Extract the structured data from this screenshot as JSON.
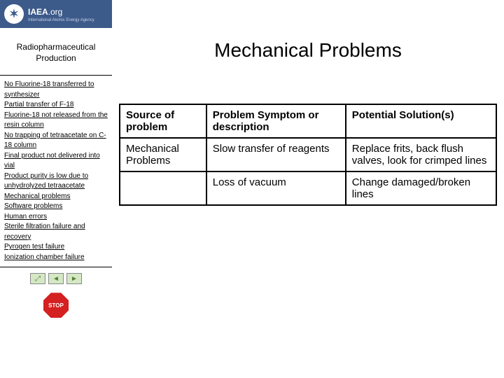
{
  "header": {
    "org": "IAEA",
    "suffix": ".org",
    "subtitle": "International Atomic Energy Agency",
    "logo_glyph": "✶"
  },
  "sidebar": {
    "title": "Radiopharmaceutical Production",
    "links": [
      " No Fluorine-18 transferred to synthesizer",
      "Partial transfer of F-18",
      "Fluorine-18 not released from the resin column",
      "No trapping of tetraacetate on C-18 column",
      "Final product not delivered into vial",
      "Product purity is low due to unhydrolyzed tetraacetate",
      "Mechanical problems",
      "Software problems",
      "Human errors",
      "Sterile filtration failure and recovery",
      "Pyrogen test failure",
      "Ionization chamber failure"
    ],
    "stop_label": "STOP"
  },
  "main": {
    "title": "Mechanical Problems",
    "table": {
      "headers": [
        "Source of problem",
        "Problem Symptom or description",
        "Potential Solution(s)"
      ],
      "rows": [
        [
          "Mechanical Problems",
          "Slow transfer of reagents",
          "Replace frits, back flush valves, look for crimped lines"
        ],
        [
          "",
          "Loss of vacuum",
          "Change damaged/broken lines"
        ]
      ]
    }
  },
  "colors": {
    "header_bg": "#3c5a8a",
    "nav_bg": "#d4e8c4",
    "stop_bg": "#d42020"
  }
}
